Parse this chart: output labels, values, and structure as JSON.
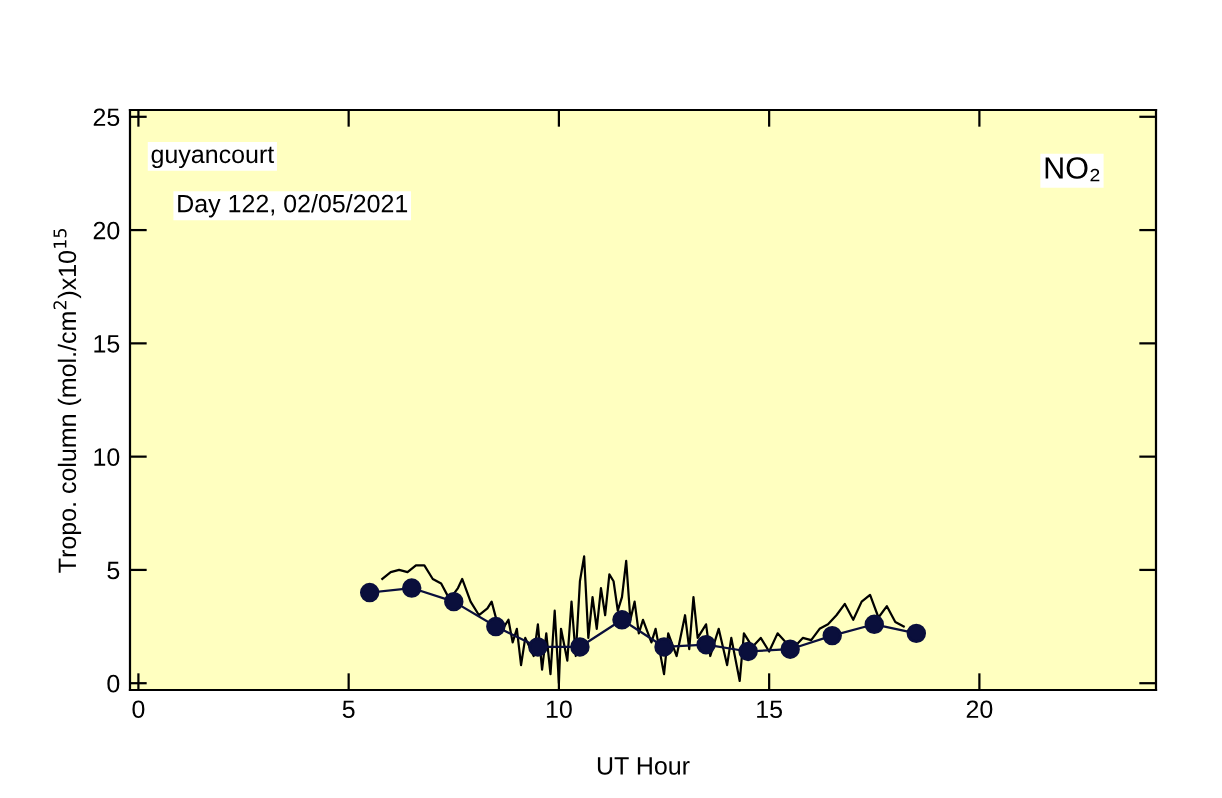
{
  "chart_data": {
    "type": "line",
    "xlabel": "UT Hour",
    "ylabel": "Tropo. column (mol./cm$^{2}$)x10$^{15}$",
    "xlim": [
      -0.2,
      24.2
    ],
    "ylim": [
      -0.3,
      25.3
    ],
    "xticks": [
      0,
      5,
      10,
      15,
      20
    ],
    "yticks": [
      0,
      5,
      10,
      15,
      20,
      25
    ],
    "grid": false,
    "legend": false,
    "annotations": [
      "guyancourt",
      "Day 122, 02/05/2021",
      "NO₂"
    ],
    "series": [
      {
        "color": "#000000",
        "marker": "none",
        "x": [
          5.8,
          6.0,
          6.2,
          6.4,
          6.6,
          6.8,
          7.0,
          7.2,
          7.4,
          7.6,
          7.7,
          7.9,
          8.1,
          8.3,
          8.4,
          8.6,
          8.8,
          8.9,
          9.0,
          9.1,
          9.2,
          9.4,
          9.5,
          9.6,
          9.7,
          9.8,
          9.9,
          10.0,
          10.05,
          10.2,
          10.3,
          10.4,
          10.5,
          10.6,
          10.7,
          10.8,
          10.9,
          11.0,
          11.1,
          11.2,
          11.3,
          11.4,
          11.5,
          11.6,
          11.7,
          11.8,
          11.9,
          12.0,
          12.2,
          12.3,
          12.5,
          12.6,
          12.8,
          13.0,
          13.1,
          13.2,
          13.3,
          13.5,
          13.6,
          13.8,
          14.0,
          14.1,
          14.3,
          14.4,
          14.6,
          14.8,
          15.0,
          15.2,
          15.4,
          15.6,
          15.8,
          16.0,
          16.2,
          16.4,
          16.6,
          16.8,
          17.0,
          17.2,
          17.4,
          17.6,
          17.8,
          18.0,
          18.2
        ],
        "values": [
          4.6,
          4.9,
          5.0,
          4.9,
          5.2,
          5.2,
          4.6,
          4.4,
          3.7,
          4.2,
          4.6,
          3.6,
          3.0,
          3.3,
          3.6,
          2.2,
          2.8,
          1.8,
          2.4,
          0.8,
          2.0,
          1.2,
          2.6,
          0.6,
          2.2,
          0.4,
          3.2,
          0.0,
          2.4,
          1.0,
          3.6,
          1.2,
          4.5,
          5.6,
          2.0,
          3.8,
          2.4,
          4.2,
          3.0,
          4.8,
          4.5,
          3.2,
          3.8,
          5.4,
          2.8,
          3.6,
          2.2,
          2.8,
          1.8,
          2.4,
          0.4,
          2.2,
          1.2,
          3.0,
          1.5,
          3.8,
          2.0,
          2.6,
          1.2,
          2.4,
          0.8,
          2.0,
          0.1,
          2.2,
          1.6,
          2.0,
          1.4,
          2.2,
          1.8,
          1.6,
          2.0,
          1.9,
          2.4,
          2.6,
          3.0,
          3.5,
          2.8,
          3.6,
          3.9,
          2.9,
          3.4,
          2.7,
          2.5
        ]
      },
      {
        "color": "#0a0f3c",
        "marker": "circle",
        "x": [
          5.5,
          6.5,
          7.5,
          8.5,
          9.5,
          10.5,
          11.5,
          12.5,
          13.5,
          14.5,
          15.5,
          16.5,
          17.5,
          18.5
        ],
        "values": [
          4.0,
          4.2,
          3.6,
          2.5,
          1.6,
          1.6,
          2.8,
          1.6,
          1.7,
          1.4,
          1.5,
          2.1,
          2.6,
          2.2
        ]
      }
    ]
  }
}
